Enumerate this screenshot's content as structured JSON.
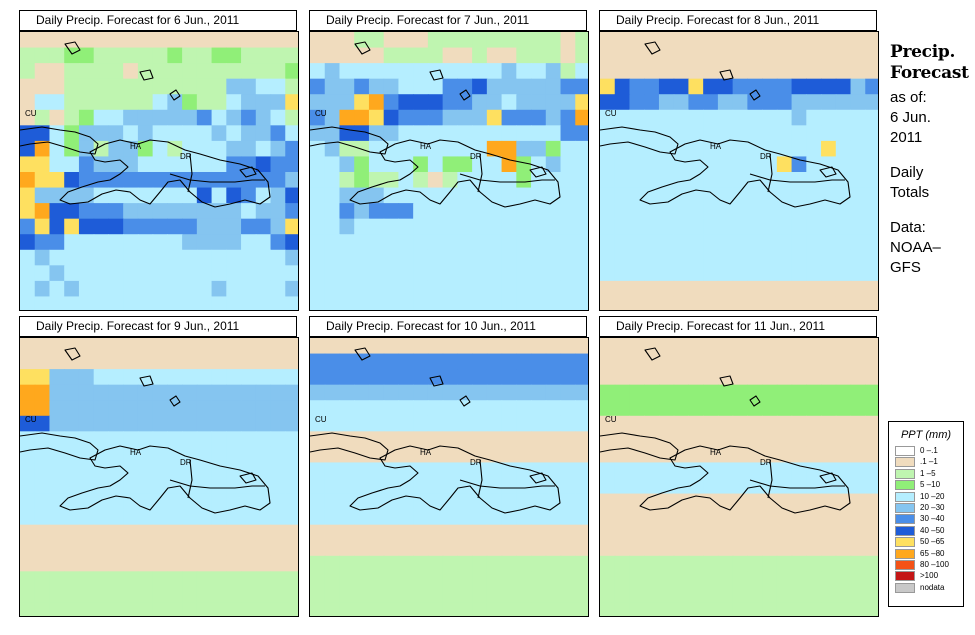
{
  "side_panel": {
    "title_line1": "Precip.",
    "title_line2": "Forecast",
    "asof_label": "as of:",
    "date_line1": "6 Jun.",
    "date_line2": "2011",
    "totals_line1": "Daily",
    "totals_line2": "Totals",
    "source_line1": "Data:",
    "source_line2": "NOAA–",
    "source_line3": "GFS"
  },
  "panels": [
    {
      "title": "Daily Precip. Forecast for  6 Jun., 2011",
      "grid": [
        "1111111111111111111",
        "2223322222322332222",
        "2112222122222222223",
        "1112222222222255442",
        "1442222224532245558",
        "1212344555556456542",
        "7743555454444545564",
        "7943525534244455456",
        "8844655544444466766",
        "9887666666666666665",
        "8555544444447476457",
        "8977666555555554556",
        "6878777666665556658",
        "7664444444455554467",
        "4544444444444444445",
        "4454444444444444444",
        "4545444444444544445",
        "4444444444444444444"
      ],
      "labels": [
        {
          "text": "CU",
          "x": 5,
          "y": 84
        },
        {
          "text": "HA",
          "x": 110,
          "y": 117
        },
        {
          "text": "DR",
          "x": 160,
          "y": 127
        }
      ]
    },
    {
      "title": "Daily Precip. Forecast for  7 Jun., 2011",
      "grid": [
        "1112211122222222212",
        "1111122221121122212",
        "4544444444444544524",
        "6556554446675555566",
        "5558967776655455558",
        "6599876665558666569",
        "5577554444444444466",
        "4522444444449955344",
        "4453444343344934544",
        "4423224212444434444",
        "4455544444444444444",
        "4465666444444444444",
        "4454444444444444444",
        "4444444444444444444",
        "4444444444444444444",
        "4444444444444444444",
        "4444444444444444444",
        "4444444444444444444"
      ],
      "labels": [
        {
          "text": "CU",
          "x": 5,
          "y": 84
        },
        {
          "text": "HA",
          "x": 110,
          "y": 117
        },
        {
          "text": "DR",
          "x": 160,
          "y": 127
        }
      ]
    },
    {
      "title": "Daily Precip. Forecast for  8 Jun., 2011",
      "grid": [
        "1111111111111111111",
        "1111111111111111111",
        "1111111111111111111",
        "8766778776666777756",
        "7766556655666555555",
        "4444444444444544444",
        "4444444444444444444",
        "4444444444444448444",
        "4444444444448644444",
        "4444444444444444444",
        "4444444444444444444",
        "4444444444444444444",
        "4444444444444444444",
        "4444444444444444444",
        "4444444444444444444",
        "4444444444444444444",
        "1111111111111111111",
        "1111111111111111111"
      ],
      "labels": [
        {
          "text": "CU",
          "x": 5,
          "y": 84
        },
        {
          "text": "HA",
          "x": 110,
          "y": 117
        },
        {
          "text": "DR",
          "x": 160,
          "y": 127
        }
      ]
    },
    {
      "title": "Daily Precip. Forecast for  9 Jun., 2011",
      "grid": [
        "1111111111111111111",
        "1111111111111111111",
        "8855544444444444444",
        "9955555555555555555",
        "9955555555555555555",
        "7755555555555555555",
        "4444444444444444444",
        "4444444444444444444",
        "4444444444444444444",
        "4444444444444444444",
        "4444444444444444444",
        "4444444444444444444",
        "1111111111111111111",
        "1111111111111111111",
        "1111111111111111111",
        "2222222222222222222",
        "2222222222222222222",
        "2222222222222222222"
      ],
      "labels": [
        {
          "text": "CU",
          "x": 5,
          "y": 84
        },
        {
          "text": "HA",
          "x": 110,
          "y": 117
        },
        {
          "text": "DR",
          "x": 160,
          "y": 127
        }
      ]
    },
    {
      "title": "Daily Precip. Forecast for  10 Jun., 2011",
      "grid": [
        "1111111111111111111",
        "6666666666666666666",
        "6666666666666666666",
        "5555555555555555555",
        "4444444444444444444",
        "4444444444444444444",
        "1111111111111111111",
        "1111111111111111111",
        "4444444444444444444",
        "4444444444444444444",
        "4444444444444444444",
        "4444444444444444444",
        "1111111111111111111",
        "1111111111111111111",
        "2222222222222222222",
        "2222222222222222222",
        "2222222222222222222",
        "2222222222222222222"
      ],
      "labels": [
        {
          "text": "CU",
          "x": 5,
          "y": 84
        },
        {
          "text": "HA",
          "x": 110,
          "y": 117
        },
        {
          "text": "DR",
          "x": 160,
          "y": 127
        }
      ]
    },
    {
      "title": "Daily Precip. Forecast for  11 Jun., 2011",
      "grid": [
        "1111111111111111111",
        "1111111111111111111",
        "1111111111111111111",
        "3333333333333333333",
        "3333333333333333333",
        "1111111111111111111",
        "1111111111111111111",
        "1111111111111111111",
        "4444444444444444444",
        "4444444444444444444",
        "1111111111111111111",
        "1111111111111111111",
        "1111111111111111111",
        "1111111111111111111",
        "2222222222222222222",
        "2222222222222222222",
        "2222222222222222222",
        "2222222222222222222"
      ],
      "labels": [
        {
          "text": "CU",
          "x": 5,
          "y": 84
        },
        {
          "text": "HA",
          "x": 110,
          "y": 117
        },
        {
          "text": "DR",
          "x": 160,
          "y": 127
        }
      ]
    }
  ],
  "legend": {
    "title": "PPT (mm)",
    "items": [
      {
        "label": "0 –.1",
        "color": "#ffffff"
      },
      {
        "label": ".1 –1",
        "color": "#f0dcbe"
      },
      {
        "label": "1 –5",
        "color": "#bff5b0"
      },
      {
        "label": "5 –10",
        "color": "#90ef78"
      },
      {
        "label": "10 –20",
        "color": "#b5eeff"
      },
      {
        "label": "20 –30",
        "color": "#85c5f0"
      },
      {
        "label": "30 –40",
        "color": "#4a8ee8"
      },
      {
        "label": "40 –50",
        "color": "#1e5cd8"
      },
      {
        "label": "50 –65",
        "color": "#fee060"
      },
      {
        "label": "65 –80",
        "color": "#ffa81d"
      },
      {
        "label": "80 –100",
        "color": "#f45216"
      },
      {
        "label": ">100",
        "color": "#c41616"
      },
      {
        "label": "nodata",
        "color": "#c8c8c8"
      }
    ]
  },
  "colors": {
    "0": "#ffffff",
    "1": "#f0dcbe",
    "2": "#bff5b0",
    "3": "#90ef78",
    "4": "#b5eeff",
    "5": "#85c5f0",
    "6": "#4a8ee8",
    "7": "#1e5cd8",
    "8": "#fee060",
    "9": "#ffa81d",
    "a": "#f45216",
    "b": "#c41616",
    "c": "#c8c8c8"
  }
}
